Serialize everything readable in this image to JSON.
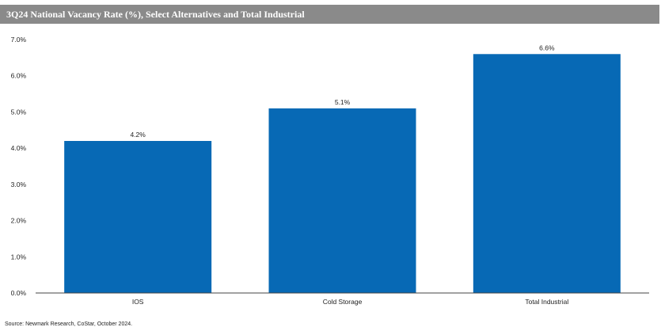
{
  "title": "3Q24 National Vacancy Rate (%), Select Alternatives and Total Industrial",
  "source": "Source: Newmark Research, CoStar, October 2024.",
  "colors": {
    "bar": "#0769b5",
    "title_bg": "#8a8a8a",
    "axis": "#444444"
  },
  "chart_data": {
    "type": "bar",
    "title": "3Q24 National Vacancy Rate (%), Select Alternatives and Total Industrial",
    "categories": [
      "IOS",
      "Cold Storage",
      "Total Industrial"
    ],
    "values": [
      4.2,
      5.1,
      6.6
    ],
    "value_labels": [
      "4.2%",
      "5.1%",
      "6.6%"
    ],
    "ylim": [
      0,
      7
    ],
    "yticks": [
      0,
      1,
      2,
      3,
      4,
      5,
      6,
      7
    ],
    "ytick_labels": [
      "0.0%",
      "1.0%",
      "2.0%",
      "3.0%",
      "4.0%",
      "5.0%",
      "6.0%",
      "7.0%"
    ],
    "xlabel": "",
    "ylabel": "",
    "grid": false,
    "legend": "none"
  }
}
